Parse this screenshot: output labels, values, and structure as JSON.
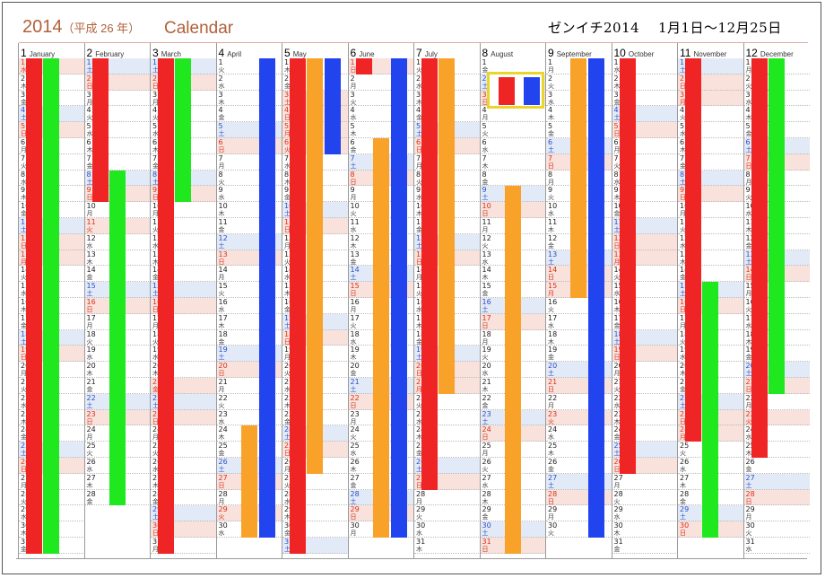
{
  "header": {
    "year": "2014",
    "era": "（平成 26 年）",
    "calendar_label": "Calendar",
    "right_title": "ゼンイチ2014　 1月1日〜12月25日"
  },
  "weekday_chars": [
    "日",
    "月",
    "火",
    "水",
    "木",
    "金",
    "土"
  ],
  "months": [
    {
      "num": "1",
      "name": "January",
      "days": 31,
      "start_weekday": 3
    },
    {
      "num": "2",
      "name": "February",
      "days": 28,
      "start_weekday": 6
    },
    {
      "num": "3",
      "name": "March",
      "days": 31,
      "start_weekday": 6
    },
    {
      "num": "4",
      "name": "April",
      "days": 30,
      "start_weekday": 2
    },
    {
      "num": "5",
      "name": "May",
      "days": 31,
      "start_weekday": 4
    },
    {
      "num": "6",
      "name": "June",
      "days": 30,
      "start_weekday": 0
    },
    {
      "num": "7",
      "name": "July",
      "days": 31,
      "start_weekday": 2
    },
    {
      "num": "8",
      "name": "August",
      "days": 31,
      "start_weekday": 5
    },
    {
      "num": "9",
      "name": "September",
      "days": 30,
      "start_weekday": 1
    },
    {
      "num": "10",
      "name": "October",
      "days": 31,
      "start_weekday": 3
    },
    {
      "num": "11",
      "name": "November",
      "days": 30,
      "start_weekday": 6
    },
    {
      "num": "12",
      "name": "December",
      "days": 31,
      "start_weekday": 1
    }
  ],
  "holidays": {
    "1": [
      1,
      13
    ],
    "2": [
      11
    ],
    "3": [
      21
    ],
    "4": [
      29
    ],
    "5": [
      3,
      4,
      5,
      6
    ],
    "7": [
      21
    ],
    "9": [
      15,
      23
    ],
    "10": [
      13
    ],
    "11": [
      3,
      23,
      24
    ],
    "12": [
      23
    ]
  },
  "colors": {
    "red": "#ef2424",
    "green": "#1fe81f",
    "blue": "#2244ee",
    "orange": "#f8a22a",
    "highlight_border": "#e8d62a"
  },
  "bars": [
    {
      "month": 1,
      "lane": 0,
      "start": 1,
      "end": 31,
      "color": "red"
    },
    {
      "month": 1,
      "lane": 1,
      "start": 1,
      "end": 31,
      "color": "green"
    },
    {
      "month": 2,
      "lane": 0,
      "start": 1,
      "end": 9,
      "color": "red"
    },
    {
      "month": 2,
      "lane": 1,
      "start": 8,
      "end": 28,
      "color": "green"
    },
    {
      "month": 3,
      "lane": 0,
      "start": 1,
      "end": 31,
      "color": "red"
    },
    {
      "month": 3,
      "lane": 1,
      "start": 1,
      "end": 9,
      "color": "green"
    },
    {
      "month": 4,
      "lane": 1,
      "start": 24,
      "end": 30,
      "color": "orange"
    },
    {
      "month": 4,
      "lane": 2,
      "start": 1,
      "end": 30,
      "color": "blue"
    },
    {
      "month": 5,
      "lane": 0,
      "start": 1,
      "end": 31,
      "color": "red"
    },
    {
      "month": 5,
      "lane": 1,
      "start": 1,
      "end": 26,
      "color": "orange"
    },
    {
      "month": 5,
      "lane": 2,
      "start": 1,
      "end": 6,
      "color": "blue"
    },
    {
      "month": 6,
      "lane": 0,
      "start": 1,
      "end": 1,
      "color": "red"
    },
    {
      "month": 6,
      "lane": 1,
      "start": 6,
      "end": 30,
      "color": "orange"
    },
    {
      "month": 6,
      "lane": 2,
      "start": 1,
      "end": 30,
      "color": "blue"
    },
    {
      "month": 7,
      "lane": 0,
      "start": 1,
      "end": 27,
      "color": "red"
    },
    {
      "month": 7,
      "lane": 1,
      "start": 1,
      "end": 21,
      "color": "orange"
    },
    {
      "month": 8,
      "lane": 1,
      "start": 9,
      "end": 31,
      "color": "orange"
    },
    {
      "month": 9,
      "lane": 1,
      "start": 1,
      "end": 15,
      "color": "orange"
    },
    {
      "month": 9,
      "lane": 2,
      "start": 1,
      "end": 30,
      "color": "blue"
    },
    {
      "month": 10,
      "lane": 0,
      "start": 1,
      "end": 26,
      "color": "red"
    },
    {
      "month": 11,
      "lane": 0,
      "start": 1,
      "end": 24,
      "color": "red"
    },
    {
      "month": 11,
      "lane": 1,
      "start": 15,
      "end": 30,
      "color": "green"
    },
    {
      "month": 12,
      "lane": 0,
      "start": 1,
      "end": 25,
      "color": "red"
    },
    {
      "month": 12,
      "lane": 1,
      "start": 1,
      "end": 21,
      "color": "green"
    }
  ],
  "highlight": {
    "month": 8,
    "start": 2,
    "end": 3,
    "colors": [
      "red",
      "blue"
    ]
  }
}
